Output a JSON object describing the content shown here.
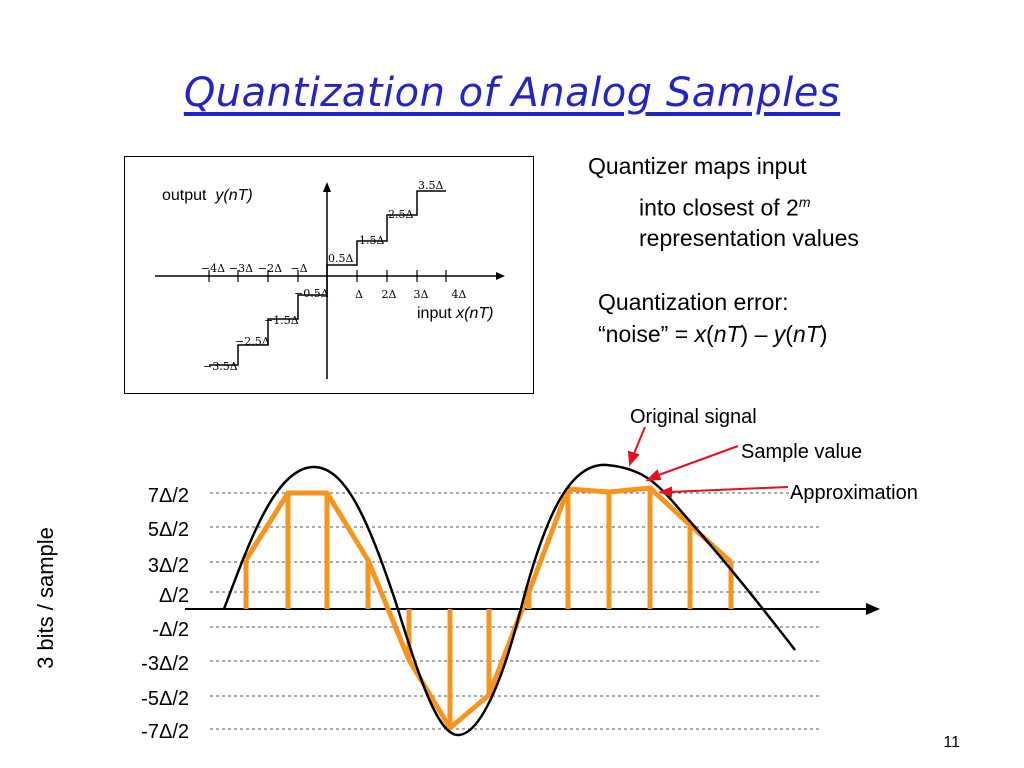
{
  "slide": {
    "title": "Quantization of Analog Samples",
    "page_number": "11"
  },
  "quantizer_plot": {
    "output_label": "output",
    "output_var": "y(nT)",
    "input_label": "input",
    "input_var": "x(nT)",
    "x_ticks_neg": [
      "−4Δ",
      "−3Δ",
      "−2Δ",
      "−Δ"
    ],
    "x_ticks_pos": [
      "Δ",
      "2Δ",
      "3Δ",
      "4Δ"
    ],
    "step_levels_pos": [
      "0.5Δ",
      "1.5Δ",
      "2.5Δ",
      "3.5Δ"
    ],
    "step_levels_neg": [
      "−0.5Δ",
      "−1.5Δ",
      "−2.5Δ",
      "−3.5Δ"
    ]
  },
  "text_block_1": {
    "line1": "Quantizer maps input",
    "line2_prefix": "into closest of 2",
    "line2_sup": "m",
    "line3": "representation values"
  },
  "text_block_2": {
    "line1": "Quantization error:",
    "line2_a": "“noise” = ",
    "line2_x": "x",
    "line2_b": "(",
    "line2_nT1": "nT",
    "line2_c": ") – ",
    "line2_y": "y",
    "line2_d": "(",
    "line2_nT2": "nT",
    "line2_e": ")"
  },
  "signal_plot": {
    "y_axis_label": "3 bits / sample",
    "levels": [
      "7Δ/2",
      "5Δ/2",
      "3Δ/2",
      "Δ/2",
      "-Δ/2",
      "-3Δ/2",
      "-5Δ/2",
      "-7Δ/2"
    ],
    "annotations": {
      "original": "Original signal",
      "sample": "Sample value",
      "approx": "Approximation"
    },
    "colors": {
      "signal": "#000000",
      "samples": "#f7941d",
      "arrows": "#e8101e",
      "gridlines": "#444444"
    }
  }
}
